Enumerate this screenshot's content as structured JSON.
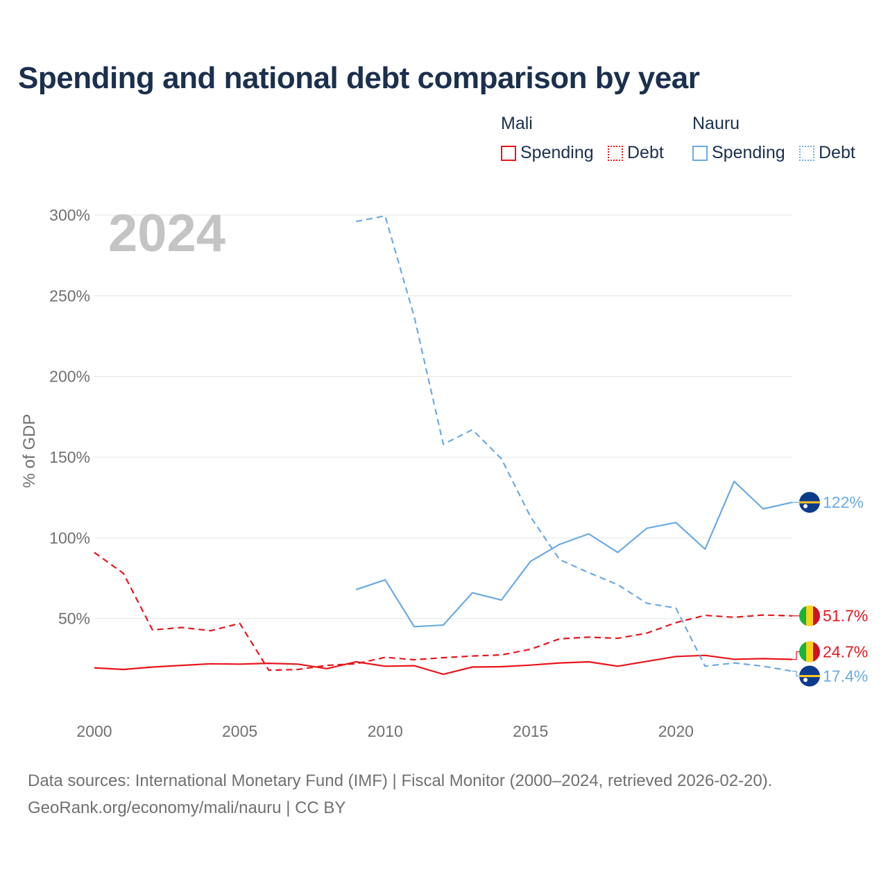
{
  "title": "Spending and national debt comparison by year",
  "legend": {
    "groups": [
      {
        "country": "Mali",
        "spending_label": "Spending",
        "debt_label": "Debt",
        "color": "#e8141b"
      },
      {
        "country": "Nauru",
        "spending_label": "Spending",
        "debt_label": "Debt",
        "color": "#6aaae4"
      }
    ]
  },
  "sources": {
    "line1": "Data sources: International Monetary Fund (IMF) | Fiscal Monitor (2000–2024, retrieved 2026-02-20).",
    "line2": "GeoRank.org/economy/mali/nauru | CC BY"
  },
  "chart_data": {
    "type": "line",
    "title": "Spending and national debt comparison by year",
    "watermark_year": "2024",
    "ylabel": "% of GDP",
    "xlabel": "",
    "xlim": [
      2000,
      2024
    ],
    "ylim": [
      0,
      300
    ],
    "y_ticks": [
      50,
      100,
      150,
      200,
      250,
      300
    ],
    "y_tick_labels": [
      "50%",
      "100%",
      "150%",
      "200%",
      "250%",
      "300%"
    ],
    "x_ticks": [
      2000,
      2005,
      2010,
      2015,
      2020
    ],
    "x_tick_labels": [
      "2000",
      "2005",
      "2010",
      "2015",
      "2020"
    ],
    "grid": true,
    "series": [
      {
        "name": "Mali Spending",
        "country": "Mali",
        "metric": "Spending",
        "color": "#e8141b",
        "dash": "solid",
        "end_label": "24.7%",
        "flag": "mali-flag-icon",
        "x": [
          2000,
          2001,
          2002,
          2003,
          2004,
          2005,
          2006,
          2007,
          2008,
          2009,
          2010,
          2011,
          2012,
          2013,
          2014,
          2015,
          2016,
          2017,
          2018,
          2019,
          2020,
          2021,
          2022,
          2023,
          2024
        ],
        "values": [
          19.5,
          18.5,
          20,
          21,
          22,
          21.8,
          22.3,
          21.8,
          19,
          23.2,
          20.5,
          20.8,
          15.5,
          20,
          20.2,
          21.2,
          22.5,
          23.2,
          20.5,
          23.5,
          26.5,
          27.2,
          24.8,
          25.2,
          24.7
        ]
      },
      {
        "name": "Mali Debt",
        "country": "Mali",
        "metric": "Debt",
        "color": "#e8141b",
        "dash": "dashed",
        "end_label": "51.7%",
        "flag": "mali-flag-icon",
        "x": [
          2000,
          2001,
          2002,
          2003,
          2004,
          2005,
          2006,
          2007,
          2008,
          2009,
          2010,
          2011,
          2012,
          2013,
          2014,
          2015,
          2016,
          2017,
          2018,
          2019,
          2020,
          2021,
          2022,
          2023,
          2024
        ],
        "values": [
          91,
          78,
          43,
          44.5,
          42.5,
          47,
          18,
          18.5,
          21,
          22,
          26,
          24.5,
          25.8,
          26.8,
          27.5,
          31,
          37.5,
          38.5,
          37.8,
          41,
          47.5,
          52,
          50.8,
          52.2,
          51.7
        ]
      },
      {
        "name": "Nauru Spending",
        "country": "Nauru",
        "metric": "Spending",
        "color": "#6aaae4",
        "dash": "solid",
        "end_label": "122%",
        "flag": "nauru-flag-icon",
        "x": [
          2009,
          2010,
          2011,
          2012,
          2013,
          2014,
          2015,
          2016,
          2017,
          2018,
          2019,
          2020,
          2021,
          2022,
          2023,
          2024
        ],
        "values": [
          68,
          74,
          45,
          46,
          66,
          61.5,
          85.5,
          96,
          102.5,
          91,
          106,
          109.5,
          93,
          135,
          118,
          122
        ]
      },
      {
        "name": "Nauru Debt",
        "country": "Nauru",
        "metric": "Debt",
        "color": "#6aaae4",
        "dash": "dashed",
        "end_label": "17.4%",
        "flag": "nauru-flag-icon",
        "x": [
          2009,
          2010,
          2011,
          2012,
          2013,
          2014,
          2015,
          2016,
          2017,
          2018,
          2019,
          2020,
          2021,
          2022,
          2023,
          2024
        ],
        "values": [
          296,
          299.5,
          237,
          158,
          167,
          149,
          113,
          86.5,
          78.5,
          71,
          59.5,
          56.5,
          20.5,
          22.5,
          20.5,
          17.4
        ]
      }
    ]
  }
}
